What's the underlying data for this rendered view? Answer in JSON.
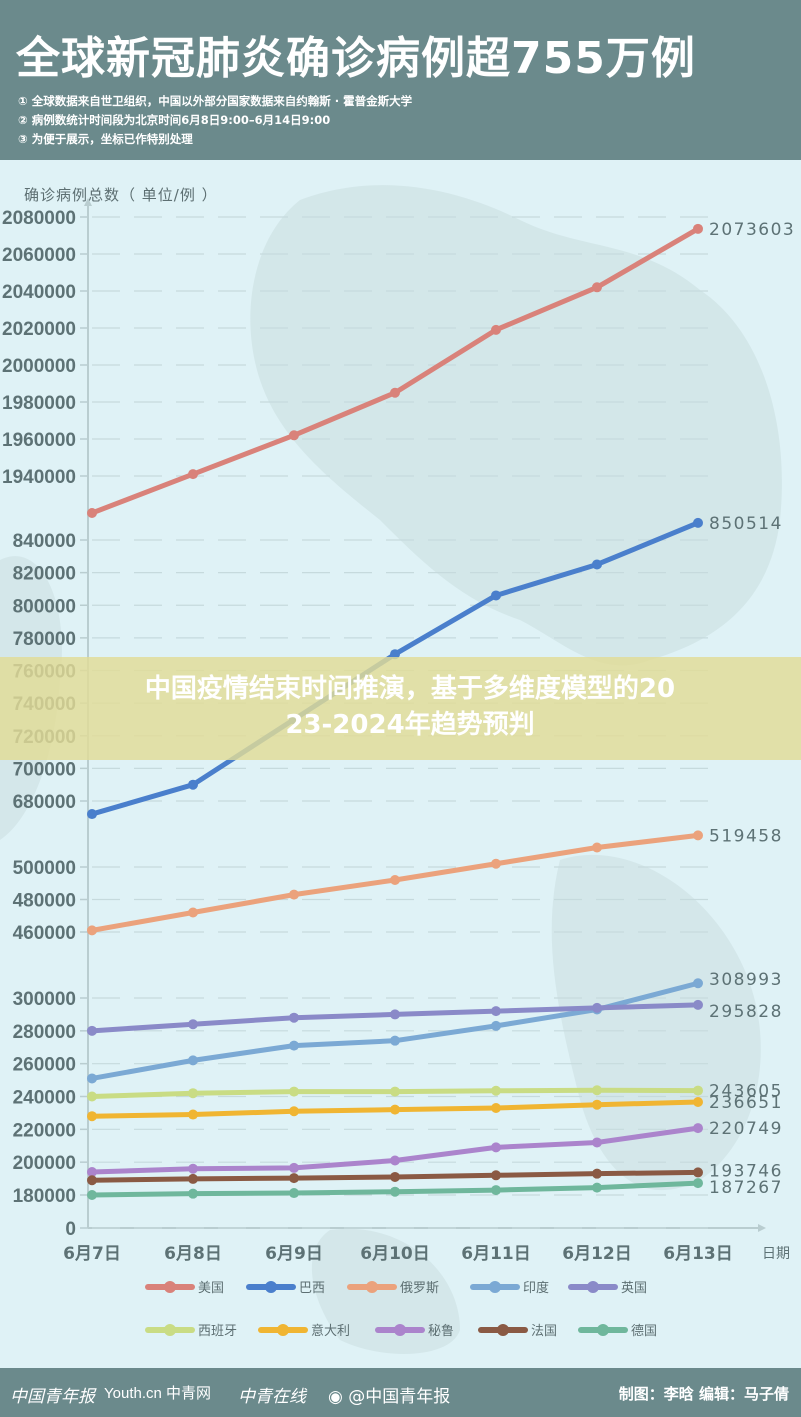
{
  "header": {
    "title": "全球新冠肺炎确诊病例超755万例",
    "notes": [
      "① 全球数据来自世卫组织，中国以外部分国家数据来自约翰斯 · 霍普金斯大学",
      "② 病例数统计时间段为北京时间6月8日9:00–6月14日9:00",
      "③ 为便于展示，坐标已作特别处理"
    ],
    "background_color": "#6b8a8c"
  },
  "overlay": {
    "text": "中国疫情结束时间推演，基于多维度模型的2023-2024年趋势预判",
    "line1": "中国疫情结束时间推演，基于多维度模型的20",
    "line2": "23-2024年趋势预判"
  },
  "chart_data": {
    "type": "line",
    "title": "全球新冠肺炎确诊病例超755万例",
    "ylabel": "确诊病例总数（ 单位/例 ）",
    "xlabel": "日期",
    "categories": [
      "6月7日",
      "6月8日",
      "6月9日",
      "6月10日",
      "6月11日",
      "6月12日",
      "6月13日"
    ],
    "y_axis_segments": [
      {
        "ticks": [
          1940000,
          1960000,
          1980000,
          2000000,
          2020000,
          2040000,
          2060000,
          2080000
        ]
      },
      {
        "ticks": [
          680000,
          700000,
          720000,
          740000,
          760000,
          780000,
          800000,
          820000,
          840000
        ]
      },
      {
        "ticks": [
          460000,
          480000,
          500000
        ]
      },
      {
        "ticks": [
          0,
          180000,
          200000,
          220000,
          240000,
          260000,
          280000,
          300000
        ]
      }
    ],
    "grid": true,
    "legend_position": "bottom",
    "series": [
      {
        "name": "美国",
        "color": "#d9827a",
        "values": [
          1920000,
          1941000,
          1962000,
          1985000,
          2019000,
          2042000,
          2073603
        ],
        "end_label": "2073603"
      },
      {
        "name": "巴西",
        "color": "#4a7fcc",
        "values": [
          672000,
          690000,
          730000,
          770000,
          806000,
          825000,
          850514
        ],
        "end_label": "850514"
      },
      {
        "name": "俄罗斯",
        "color": "#eba27c",
        "values": [
          461000,
          472000,
          483000,
          492000,
          502000,
          512000,
          519458
        ],
        "end_label": "519458"
      },
      {
        "name": "印度",
        "color": "#7ba9d4",
        "values": [
          251000,
          262000,
          271000,
          274000,
          283000,
          293000,
          308993
        ],
        "end_label": "308993"
      },
      {
        "name": "英国",
        "color": "#8a8ac8",
        "values": [
          280000,
          284000,
          288000,
          290000,
          292000,
          294000,
          295828
        ],
        "end_label": "295828"
      },
      {
        "name": "西班牙",
        "color": "#c9dc84",
        "values": [
          240000,
          242000,
          243000,
          243000,
          243500,
          243800,
          243605
        ],
        "end_label": "243605"
      },
      {
        "name": "意大利",
        "color": "#f0b532",
        "values": [
          228000,
          229000,
          231000,
          232000,
          233000,
          235000,
          236651
        ],
        "end_label": "236651"
      },
      {
        "name": "秘鲁",
        "color": "#ab84cc",
        "values": [
          194000,
          196000,
          196500,
          201000,
          209000,
          212000,
          220749
        ],
        "end_label": "220749"
      },
      {
        "name": "法国",
        "color": "#8a5a44",
        "values": [
          189000,
          189800,
          190300,
          191000,
          192000,
          193000,
          193746
        ],
        "end_label": "193746"
      },
      {
        "name": "德国",
        "color": "#6fb79c",
        "values": [
          180000,
          180800,
          181200,
          182000,
          183000,
          184500,
          187267
        ],
        "end_label": "187267"
      }
    ]
  },
  "footer": {
    "logos": [
      "中国青年报",
      "Youth.cn 中青网",
      "中青在线"
    ],
    "weibo": "@中国青年报",
    "credits": "制图：李晗  编辑：马子倩"
  }
}
